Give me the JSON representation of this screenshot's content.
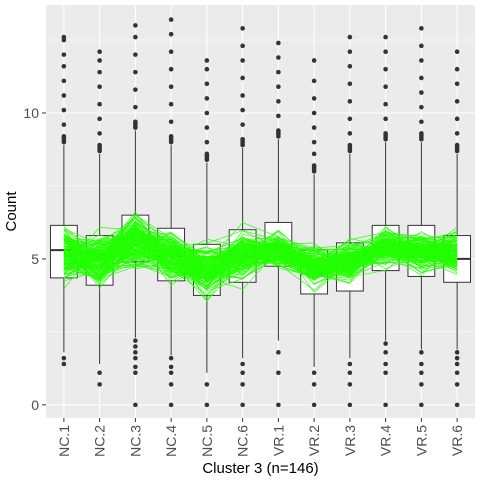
{
  "chart_data": {
    "type": "box",
    "xlabel": "Cluster 3 (n=146)",
    "ylabel": "Count",
    "categories": [
      "NC.1",
      "NC.2",
      "NC.3",
      "NC.4",
      "NC.5",
      "NC.6",
      "VR.1",
      "VR.2",
      "VR.3",
      "VR.4",
      "VR.5",
      "VR.6"
    ],
    "yticks": [
      0,
      5,
      10
    ],
    "ylim": [
      -0.45,
      13.7
    ],
    "grid": true,
    "boxes": [
      {
        "q1": 4.35,
        "median": 5.3,
        "q3": 6.15,
        "lower_whisker": 1.8,
        "upper_whisker": 8.9,
        "outliers_high": [
          9.2,
          9.6,
          10.1,
          10.6,
          11.1,
          11.6,
          12.0,
          12.5,
          12.6
        ],
        "outliers_low": [
          1.6,
          1.4
        ]
      },
      {
        "q1": 4.1,
        "median": 5.0,
        "q3": 5.8,
        "lower_whisker": 1.4,
        "upper_whisker": 8.6,
        "outliers_high": [
          8.9,
          9.3,
          9.8,
          10.3,
          10.9,
          11.4,
          11.8,
          12.1
        ],
        "outliers_low": [
          1.1,
          0.7
        ]
      },
      {
        "q1": 4.9,
        "median": 5.7,
        "q3": 6.5,
        "lower_whisker": 2.3,
        "upper_whisker": 9.4,
        "outliers_high": [
          9.7,
          10.2,
          10.8,
          11.4,
          12.0,
          12.6,
          13.0
        ],
        "outliers_low": [
          2.2,
          2.0,
          1.8,
          1.6,
          1.3,
          1.1,
          0.0
        ]
      },
      {
        "q1": 4.25,
        "median": 5.1,
        "q3": 6.05,
        "lower_whisker": 1.7,
        "upper_whisker": 8.9,
        "outliers_high": [
          9.2,
          9.7,
          10.3,
          10.9,
          11.5,
          12.1,
          12.7,
          13.2
        ],
        "outliers_low": [
          1.6,
          1.3,
          1.1,
          0.7,
          0.0
        ]
      },
      {
        "q1": 3.75,
        "median": 4.5,
        "q3": 5.5,
        "lower_whisker": 1.1,
        "upper_whisker": 8.3,
        "outliers_high": [
          8.6,
          9.0,
          9.5,
          10.0,
          10.5,
          11.0,
          11.5,
          11.8
        ],
        "outliers_low": [
          0.7,
          0.0
        ]
      },
      {
        "q1": 4.2,
        "median": 5.1,
        "q3": 6.0,
        "lower_whisker": 1.6,
        "upper_whisker": 8.8,
        "outliers_high": [
          9.1,
          9.6,
          10.1,
          10.6,
          11.2,
          11.8,
          12.3,
          12.9
        ],
        "outliers_low": [
          1.4,
          1.1,
          0.7,
          0.0
        ]
      },
      {
        "q1": 4.75,
        "median": 5.4,
        "q3": 6.25,
        "lower_whisker": 2.2,
        "upper_whisker": 9.1,
        "outliers_high": [
          9.4,
          9.9,
          10.4,
          10.9,
          11.4,
          11.9,
          12.4
        ],
        "outliers_low": [
          1.8,
          1.1,
          0.0
        ]
      },
      {
        "q1": 3.8,
        "median": 4.5,
        "q3": 5.3,
        "lower_whisker": 1.3,
        "upper_whisker": 7.9,
        "outliers_high": [
          8.2,
          8.6,
          9.0,
          9.5,
          10.0,
          10.5,
          11.1,
          11.8
        ],
        "outliers_low": [
          1.1,
          0.7,
          0.0
        ]
      },
      {
        "q1": 3.9,
        "median": 4.9,
        "q3": 5.55,
        "lower_whisker": 1.6,
        "upper_whisker": 8.6,
        "outliers_high": [
          8.9,
          9.3,
          9.8,
          10.4,
          11.0,
          11.6,
          12.1,
          12.6
        ],
        "outliers_low": [
          1.4,
          1.1,
          0.7,
          0.0
        ]
      },
      {
        "q1": 4.6,
        "median": 5.3,
        "q3": 6.15,
        "lower_whisker": 2.2,
        "upper_whisker": 9.0,
        "outliers_high": [
          9.3,
          9.8,
          10.3,
          10.9,
          11.5,
          12.1,
          12.6
        ],
        "outliers_low": [
          2.1,
          1.8,
          1.4,
          1.1,
          0.0
        ]
      },
      {
        "q1": 4.4,
        "median": 5.2,
        "q3": 6.15,
        "lower_whisker": 1.9,
        "upper_whisker": 9.0,
        "outliers_high": [
          9.3,
          9.7,
          10.2,
          10.7,
          11.2,
          11.8,
          12.3,
          12.9
        ],
        "outliers_low": [
          1.8,
          1.4,
          1.1,
          0.7,
          0.0
        ]
      },
      {
        "q1": 4.2,
        "median": 5.0,
        "q3": 5.8,
        "lower_whisker": 1.9,
        "upper_whisker": 8.6,
        "outliers_high": [
          8.9,
          9.3,
          9.8,
          10.4,
          11.0,
          11.5,
          12.1
        ],
        "outliers_low": [
          1.8,
          1.6,
          1.4,
          1.1,
          0.7,
          0.0
        ]
      }
    ],
    "profiles": {
      "count": 146,
      "mean": [
        5.2,
        5.0,
        5.55,
        5.05,
        4.6,
        5.05,
        5.3,
        4.7,
        4.9,
        5.35,
        5.25,
        5.2
      ],
      "spread": [
        0.6,
        0.6,
        0.65,
        0.55,
        0.55,
        0.55,
        0.4,
        0.45,
        0.45,
        0.4,
        0.4,
        0.5
      ],
      "color": "#33ff00"
    },
    "colors": {
      "panel": "#ebebeb",
      "grid_major": "#ffffff",
      "box_stroke": "#333333",
      "box_fill": "#ffffff",
      "outlier": "#333333",
      "profile_line": "#22ff00"
    }
  }
}
